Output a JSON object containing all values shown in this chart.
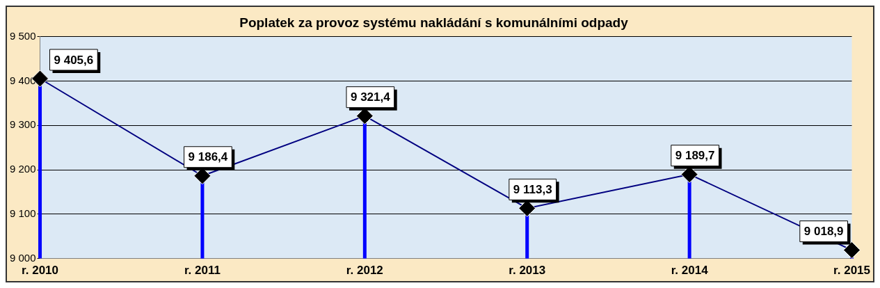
{
  "chart_data": {
    "type": "line",
    "title": "Poplatek za provoz systému nakládání s komunálními odpady",
    "categories": [
      "r. 2010",
      "r. 2011",
      "r. 2012",
      "r. 2013",
      "r. 2014",
      "r. 2015"
    ],
    "series": [
      {
        "color": "#000080",
        "values": [
          9405.6,
          9186.4,
          9321.4,
          9113.3,
          9189.7,
          9018.9
        ],
        "value_labels": [
          "9 405,6",
          "9 186,4",
          "9 321,4",
          "9 113,3",
          "9 189,7",
          "9 018,9"
        ]
      }
    ],
    "ylim": [
      9000,
      9500
    ],
    "yticks": [
      {
        "value": 9000,
        "label": "9 000"
      },
      {
        "value": 9100,
        "label": "9 100"
      },
      {
        "value": 9200,
        "label": "9 200"
      },
      {
        "value": 9300,
        "label": "9 300"
      },
      {
        "value": 9400,
        "label": "9 400"
      },
      {
        "value": 9500,
        "label": "9 500"
      }
    ],
    "grid": "y",
    "legend": false,
    "marker": "diamond",
    "line_style": "solid"
  }
}
